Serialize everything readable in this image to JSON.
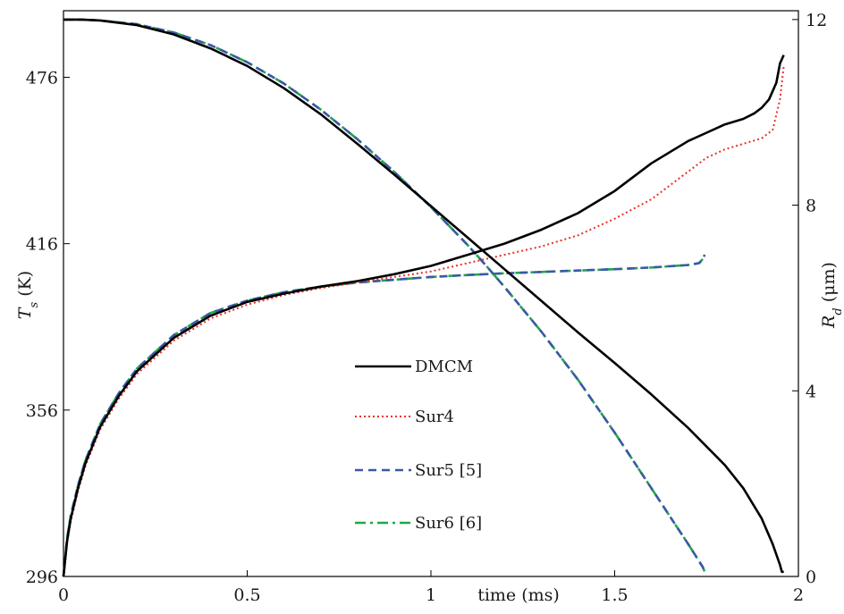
{
  "chart_data": {
    "type": "line",
    "x_axis": {
      "label": "time (ms)",
      "range": [
        0,
        2
      ],
      "ticks": [
        0,
        0.5,
        1,
        1.5,
        2
      ],
      "tick_labels": [
        "0",
        "0.5",
        "1",
        "1.5",
        "2"
      ]
    },
    "y_left": {
      "label_main": "T",
      "label_sub": "s",
      "label_unit": " (K)",
      "range": [
        296,
        500
      ],
      "ticks": [
        296,
        356,
        416,
        476
      ],
      "tick_labels": [
        "296",
        "356",
        "416",
        "476"
      ]
    },
    "y_right": {
      "label_main": "R",
      "label_sub": "d",
      "label_unit": " (μm)",
      "range": [
        0,
        12.19
      ],
      "ticks": [
        0,
        4,
        8,
        12
      ],
      "tick_labels": [
        "0",
        "4",
        "8",
        "12"
      ]
    },
    "legend_position": "center",
    "grid": false,
    "series": [
      {
        "name": "DMCM",
        "color": "#000000",
        "dash": "solid",
        "axis": "left",
        "x": [
          0,
          0.01,
          0.02,
          0.04,
          0.06,
          0.1,
          0.15,
          0.2,
          0.3,
          0.4,
          0.5,
          0.6,
          0.7,
          0.8,
          0.9,
          1.0,
          1.1,
          1.2,
          1.3,
          1.4,
          1.5,
          1.6,
          1.7,
          1.75,
          1.8,
          1.85,
          1.88,
          1.9,
          1.92,
          1.94,
          1.95,
          1.96
        ],
        "y": [
          296,
          309,
          317,
          328,
          337,
          350,
          361,
          370,
          382,
          390,
          395,
          398,
          400.5,
          402.5,
          405,
          408,
          412,
          416,
          421,
          427,
          435,
          445,
          453,
          456,
          459,
          461,
          463,
          465,
          468,
          474,
          481,
          484
        ]
      },
      {
        "name": "Sur4",
        "color": "#e8302a",
        "dash": "dotted",
        "axis": "left",
        "x": [
          0,
          0.01,
          0.02,
          0.04,
          0.06,
          0.1,
          0.15,
          0.2,
          0.3,
          0.4,
          0.5,
          0.6,
          0.7,
          0.8,
          0.9,
          1.0,
          1.1,
          1.2,
          1.3,
          1.4,
          1.5,
          1.6,
          1.7,
          1.75,
          1.8,
          1.85,
          1.9,
          1.93,
          1.95,
          1.96
        ],
        "y": [
          296,
          308,
          316,
          327,
          336,
          349,
          360,
          369,
          381,
          389,
          394,
          397.5,
          400,
          402,
          404,
          406,
          409,
          412,
          415,
          419,
          425,
          432,
          442,
          447,
          450,
          452,
          454,
          457,
          468,
          480
        ]
      },
      {
        "name": "Sur5 [5]",
        "color": "#3a58a8",
        "dash": "dashed",
        "axis": "left",
        "x": [
          0,
          0.01,
          0.02,
          0.04,
          0.06,
          0.1,
          0.15,
          0.2,
          0.3,
          0.4,
          0.5,
          0.6,
          0.7,
          0.8,
          0.9,
          1.0,
          1.1,
          1.2,
          1.3,
          1.4,
          1.5,
          1.6,
          1.7,
          1.73,
          1.74,
          1.745
        ],
        "y": [
          296,
          310,
          318,
          329,
          338,
          351,
          362,
          371,
          383,
          391,
          395.5,
          398.5,
          400.5,
          402,
          403,
          404,
          404.7,
          405.3,
          405.8,
          406.3,
          406.8,
          407.4,
          408.3,
          409,
          410.5,
          412
        ]
      },
      {
        "name": "Sur6 [6]",
        "color": "#1ea84a",
        "dash": "dashdot",
        "axis": "left",
        "x": [
          0,
          0.01,
          0.02,
          0.04,
          0.06,
          0.1,
          0.15,
          0.2,
          0.3,
          0.4,
          0.5,
          0.6,
          0.7,
          0.8,
          0.9,
          1.0,
          1.1,
          1.2,
          1.3,
          1.4,
          1.5,
          1.6,
          1.7,
          1.73,
          1.74,
          1.745
        ],
        "y": [
          296,
          310,
          318,
          329,
          338,
          351,
          362,
          371,
          383,
          391,
          395.5,
          398.5,
          400.5,
          402,
          403,
          404,
          404.7,
          405.3,
          405.8,
          406.3,
          406.8,
          407.4,
          408.3,
          409,
          410.5,
          412
        ]
      },
      {
        "name": "DMCM",
        "color": "#000000",
        "dash": "solid",
        "axis": "right",
        "x": [
          0,
          0.05,
          0.1,
          0.2,
          0.3,
          0.4,
          0.5,
          0.6,
          0.7,
          0.8,
          0.9,
          1.0,
          1.1,
          1.2,
          1.3,
          1.4,
          1.5,
          1.6,
          1.7,
          1.8,
          1.85,
          1.9,
          1.93,
          1.95,
          1.955,
          1.96
        ],
        "y": [
          12.0,
          12.0,
          11.98,
          11.88,
          11.68,
          11.38,
          11.0,
          10.52,
          9.96,
          9.32,
          8.66,
          7.98,
          7.3,
          6.62,
          5.94,
          5.26,
          4.6,
          3.92,
          3.2,
          2.4,
          1.9,
          1.25,
          0.7,
          0.25,
          0.1,
          0.1
        ]
      },
      {
        "name": "Sur4",
        "color": "#e8302a",
        "dash": "dotted",
        "axis": "right",
        "x": [
          0,
          0.05,
          0.1,
          0.2,
          0.3,
          0.4,
          0.5,
          0.6,
          0.7,
          0.8,
          0.9,
          1.0,
          1.1,
          1.2,
          1.3,
          1.4,
          1.5,
          1.6,
          1.7,
          1.8,
          1.85,
          1.9,
          1.93,
          1.95,
          1.955,
          1.96
        ],
        "y": [
          12.0,
          12.0,
          11.98,
          11.88,
          11.68,
          11.38,
          11.0,
          10.52,
          9.96,
          9.32,
          8.66,
          7.98,
          7.3,
          6.62,
          5.94,
          5.26,
          4.6,
          3.92,
          3.2,
          2.4,
          1.9,
          1.25,
          0.7,
          0.25,
          0.1,
          0.1
        ]
      },
      {
        "name": "Sur5 [5]",
        "color": "#3a58a8",
        "dash": "dashed",
        "axis": "right",
        "x": [
          0,
          0.05,
          0.1,
          0.2,
          0.3,
          0.4,
          0.5,
          0.6,
          0.7,
          0.8,
          0.9,
          1.0,
          1.1,
          1.15,
          1.2,
          1.3,
          1.4,
          1.5,
          1.6,
          1.65,
          1.7,
          1.72,
          1.74,
          1.745
        ],
        "y": [
          12.0,
          12.0,
          11.98,
          11.9,
          11.72,
          11.45,
          11.08,
          10.62,
          10.06,
          9.42,
          8.72,
          7.96,
          7.14,
          6.7,
          6.24,
          5.28,
          4.24,
          3.1,
          1.9,
          1.3,
          0.7,
          0.45,
          0.2,
          0.1
        ]
      },
      {
        "name": "Sur6 [6]",
        "color": "#1ea84a",
        "dash": "dashdot",
        "axis": "right",
        "x": [
          0,
          0.05,
          0.1,
          0.2,
          0.3,
          0.4,
          0.5,
          0.6,
          0.7,
          0.8,
          0.9,
          1.0,
          1.1,
          1.15,
          1.2,
          1.3,
          1.4,
          1.5,
          1.6,
          1.65,
          1.7,
          1.72,
          1.74,
          1.745
        ],
        "y": [
          12.0,
          12.0,
          11.98,
          11.9,
          11.72,
          11.45,
          11.08,
          10.62,
          10.06,
          9.42,
          8.72,
          7.96,
          7.14,
          6.7,
          6.24,
          5.28,
          4.24,
          3.1,
          1.9,
          1.3,
          0.7,
          0.45,
          0.2,
          0.1
        ]
      }
    ],
    "legend": [
      {
        "name": "DMCM",
        "color": "#000000",
        "dash": "solid"
      },
      {
        "name": "Sur4",
        "color": "#e8302a",
        "dash": "dotted"
      },
      {
        "name": "Sur5 [5]",
        "color": "#3a58a8",
        "dash": "dashed"
      },
      {
        "name": "Sur6 [6]",
        "color": "#1ea84a",
        "dash": "dashdot"
      }
    ]
  }
}
